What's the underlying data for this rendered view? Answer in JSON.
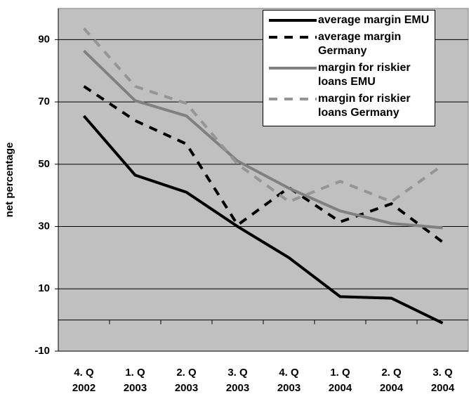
{
  "chart_data": {
    "type": "line",
    "ylabel": "net percentage",
    "categories": [
      "4. Q\n2002",
      "1. Q\n2003",
      "2. Q\n2003",
      "3. Q\n2003",
      "4. Q\n2003",
      "1. Q\n2004",
      "2. Q\n2004",
      "3. Q\n2004"
    ],
    "series": [
      {
        "name": "average margin EMU",
        "color": "#000000",
        "dashed": false,
        "values": [
          65.5,
          46.5,
          41,
          30,
          20,
          7.5,
          7,
          -1
        ]
      },
      {
        "name": "average margin Germany",
        "color": "#000000",
        "dashed": true,
        "values": [
          75,
          64,
          56.5,
          30.5,
          42.5,
          31.5,
          37.3,
          25
        ]
      },
      {
        "name": "margin for riskier loans EMU",
        "color": "#808080",
        "dashed": false,
        "values": [
          86.4,
          70.4,
          65.5,
          51,
          42.3,
          35,
          31,
          29.6
        ]
      },
      {
        "name": "margin for riskier loans Germany",
        "color": "#959595",
        "dashed": true,
        "values": [
          93.6,
          75,
          69.5,
          50,
          38,
          44.5,
          38,
          49.7
        ]
      }
    ],
    "ylim": [
      -10,
      100
    ],
    "yticks": [
      -10,
      10,
      30,
      50,
      70,
      90
    ],
    "grid": true,
    "background": "#c0c0c0",
    "legend": "upper right"
  }
}
